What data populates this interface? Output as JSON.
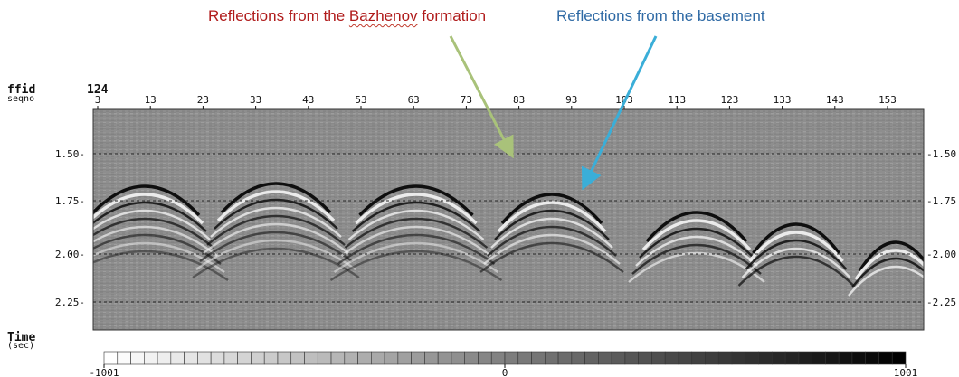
{
  "annotations": {
    "bazhenov_prefix": "Reflections from the ",
    "bazhenov_word": "Bazhenov",
    "bazhenov_suffix": " formation",
    "basement": "Reflections from the basement"
  },
  "header": {
    "ffid_label": "ffid",
    "ffid_value": "124",
    "seqno_label": "seqno",
    "seqno_ticks": [
      "3",
      "13",
      "23",
      "33",
      "43",
      "53",
      "63",
      "73",
      "83",
      "93",
      "103",
      "113",
      "123",
      "133",
      "143",
      "153"
    ]
  },
  "time_axis": {
    "label": "Time",
    "unit": "(sec)",
    "ticks": [
      "1.50",
      "1.75",
      "2.00",
      "2.25"
    ]
  },
  "colorbar": {
    "min": "-1001",
    "mid": "0",
    "max": "1001",
    "min_color": "#ffffff",
    "max_color": "#000000",
    "segments": 60
  },
  "arrows": {
    "bazhenov_color": "#a9c27a",
    "basement_color": "#3aaed8"
  }
}
